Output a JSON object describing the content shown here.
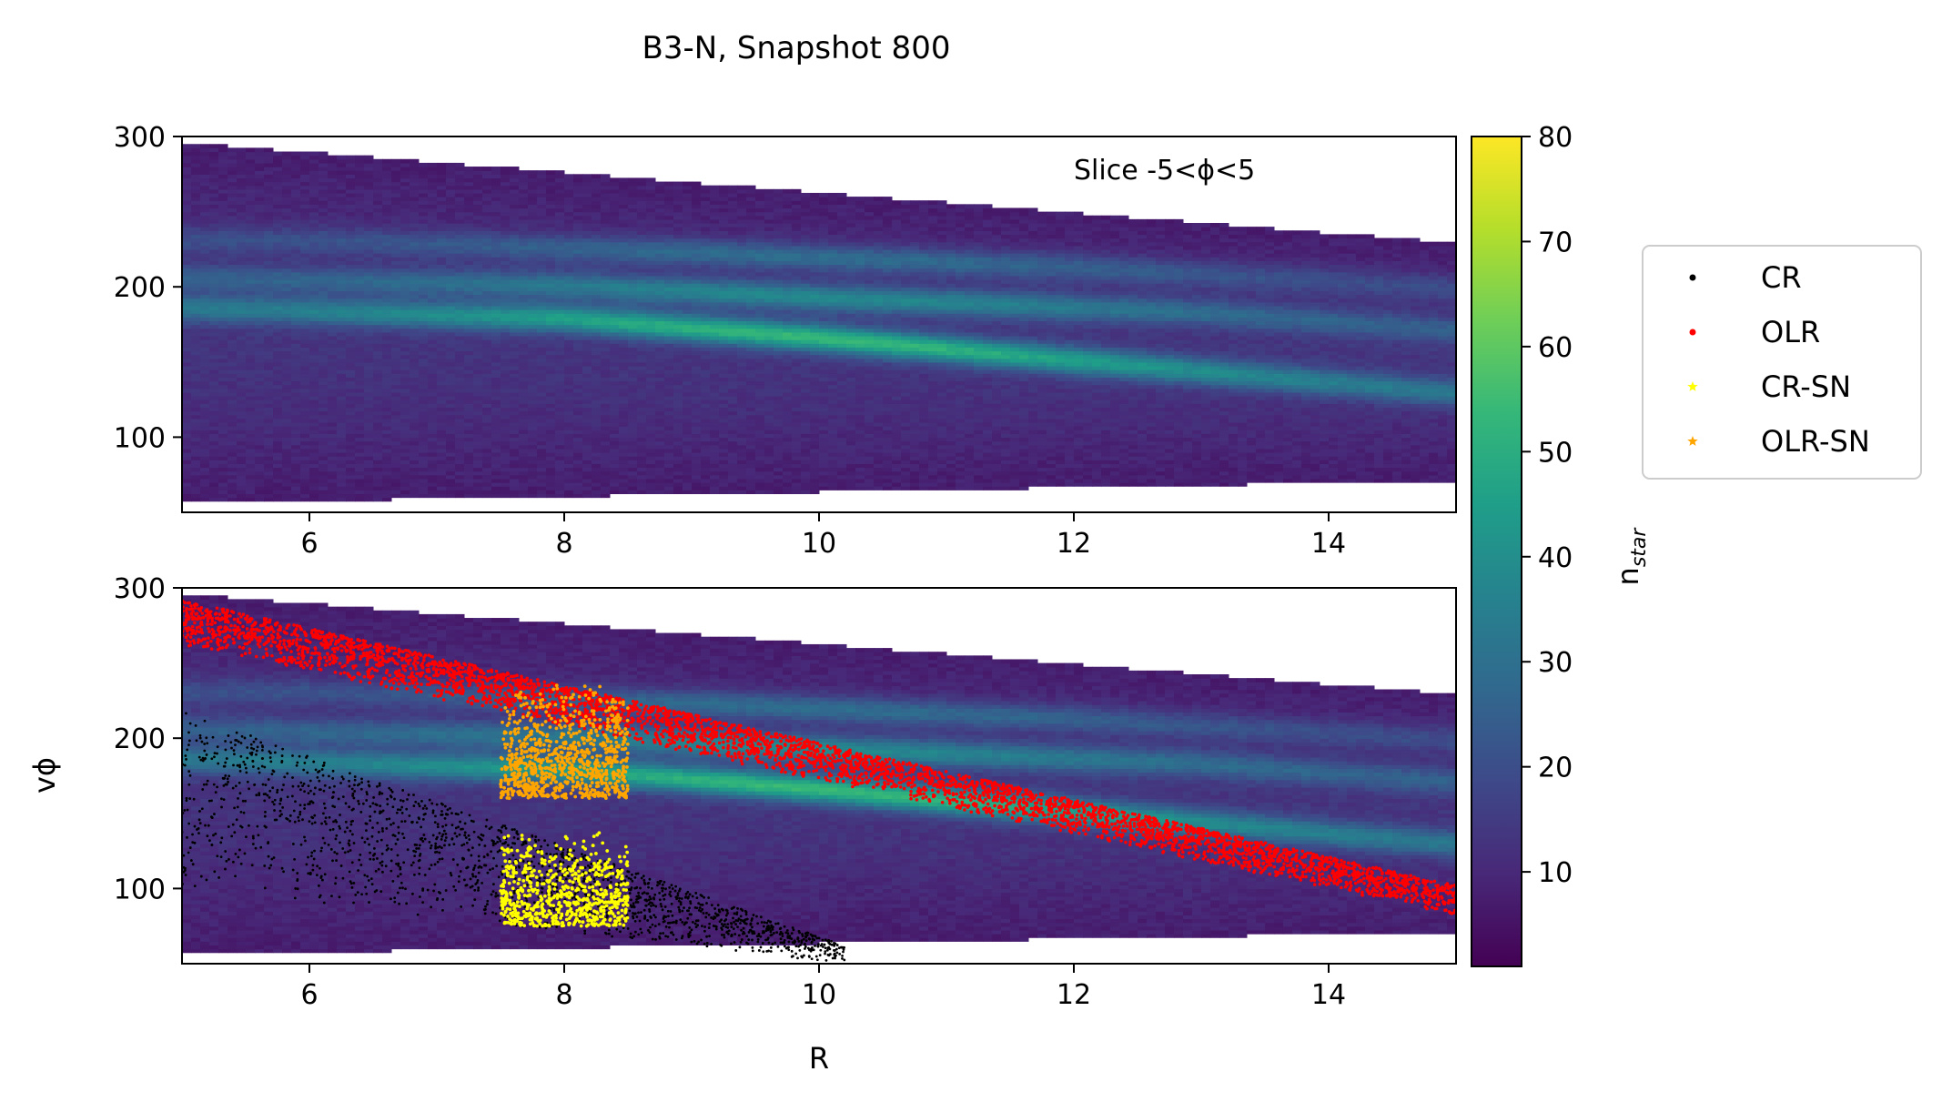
{
  "figure": {
    "title": "B3-N, Snapshot 800",
    "top_annotation": "Slice -5<ϕ<5"
  },
  "chart_data": [
    {
      "type": "heatmap",
      "panel": "top",
      "xlabel": "",
      "ylabel": "",
      "xlim": [
        5,
        15
      ],
      "ylim": [
        50,
        300
      ],
      "xticks": [
        "6",
        "8",
        "10",
        "12",
        "14"
      ],
      "yticks": [
        "100",
        "200",
        "300"
      ],
      "annotation": "Slice -5<ϕ<5",
      "ridges": [
        {
          "x": [
            5,
            8,
            10,
            12,
            15
          ],
          "y": [
            185,
            178,
            165,
            150,
            128
          ]
        },
        {
          "x": [
            5,
            8,
            10,
            13,
            15
          ],
          "y": [
            205,
            200,
            192,
            182,
            170
          ]
        },
        {
          "x": [
            6,
            9,
            12,
            15
          ],
          "y": [
            230,
            222,
            212,
            198
          ]
        }
      ],
      "envelope": {
        "x": [
          5,
          15
        ],
        "upper": [
          295,
          228
        ],
        "lower": [
          55,
          70
        ]
      }
    },
    {
      "type": "scatter",
      "panel": "bottom",
      "xlabel": "R",
      "ylabel": "vϕ",
      "xlim": [
        5,
        15
      ],
      "ylim": [
        50,
        300
      ],
      "xticks": [
        "6",
        "8",
        "10",
        "12",
        "14"
      ],
      "yticks": [
        "100",
        "200",
        "300"
      ],
      "series": [
        {
          "name": "CR",
          "color": "#000000",
          "band": {
            "x": [
              5,
              10.2
            ],
            "upper": [
              218,
              62
            ],
            "lower": [
              100,
              50
            ]
          }
        },
        {
          "name": "OLR",
          "color": "#ff0000",
          "band": {
            "x": [
              5,
              15
            ],
            "upper": [
              292,
              102
            ],
            "lower": [
              262,
              82
            ]
          }
        },
        {
          "name": "CR-SN",
          "color": "#ffff00",
          "box": {
            "x": [
              7.5,
              8.5
            ],
            "y": [
              75,
              140
            ]
          }
        },
        {
          "name": "OLR-SN",
          "color": "#ffa500",
          "box": {
            "x": [
              7.5,
              8.5
            ],
            "y": [
              160,
              240
            ]
          }
        }
      ]
    }
  ],
  "colorbar": {
    "label_main": "n",
    "label_sub": "star",
    "range": [
      1,
      80
    ],
    "ticks": [
      "10",
      "20",
      "30",
      "40",
      "50",
      "60",
      "70",
      "80"
    ],
    "colors": [
      "#440154",
      "#482878",
      "#3e4989",
      "#31688e",
      "#26828e",
      "#1f9e89",
      "#35b779",
      "#6ece58",
      "#b5de2b",
      "#fde725"
    ]
  },
  "legend": {
    "items": [
      {
        "label": "CR",
        "color": "#000000",
        "marker": "dot"
      },
      {
        "label": "OLR",
        "color": "#ff0000",
        "marker": "dot"
      },
      {
        "label": "CR-SN",
        "color": "#ffff00",
        "marker": "star"
      },
      {
        "label": "OLR-SN",
        "color": "#ffa500",
        "marker": "star"
      }
    ]
  }
}
